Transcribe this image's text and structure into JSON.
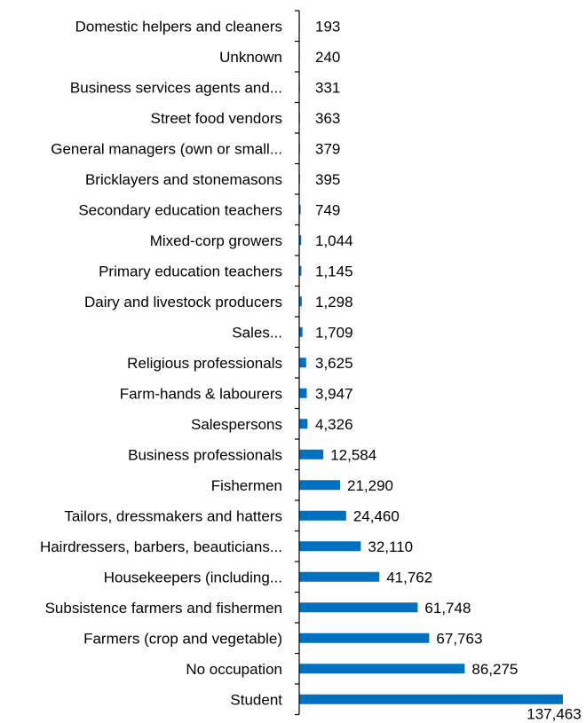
{
  "chart_data": {
    "type": "bar",
    "orientation": "horizontal",
    "bar_color": "#0070C0",
    "categories": [
      "Domestic helpers and cleaners",
      "Unknown",
      "Business services agents and...",
      "Street food vendors",
      "General managers (own or small...",
      "Bricklayers and stonemasons",
      "Secondary education teachers",
      "Mixed-corp growers",
      "Primary education teachers",
      "Dairy and livestock producers",
      "Sales...",
      "Religious professionals",
      "Farm-hands & labourers",
      "Salespersons",
      "Business professionals",
      "Fishermen",
      "Tailors, dressmakers and hatters",
      "Hairdressers, barbers, beauticians...",
      "Housekeepers (including...",
      "Subsistence farmers and fishermen",
      "Farmers (crop and vegetable)",
      "No occupation",
      "Student"
    ],
    "values": [
      193,
      240,
      331,
      363,
      379,
      395,
      749,
      1044,
      1145,
      1298,
      1709,
      3625,
      3947,
      4326,
      12584,
      21290,
      24460,
      32110,
      41762,
      61748,
      67763,
      86275,
      137463
    ],
    "value_labels": [
      "193",
      "240",
      "331",
      "363",
      "379",
      "395",
      "749",
      "1,044",
      "1,145",
      "1,298",
      "1,709",
      "3,625",
      "3,947",
      "4,326",
      "12,584",
      "21,290",
      "24,460",
      "32,110",
      "41,762",
      "61,748",
      "67,763",
      "86,275",
      "137,463"
    ],
    "title": "",
    "xlabel": "",
    "ylabel": "",
    "xlim": [
      0,
      137463
    ],
    "grid": false,
    "legend": "none"
  }
}
